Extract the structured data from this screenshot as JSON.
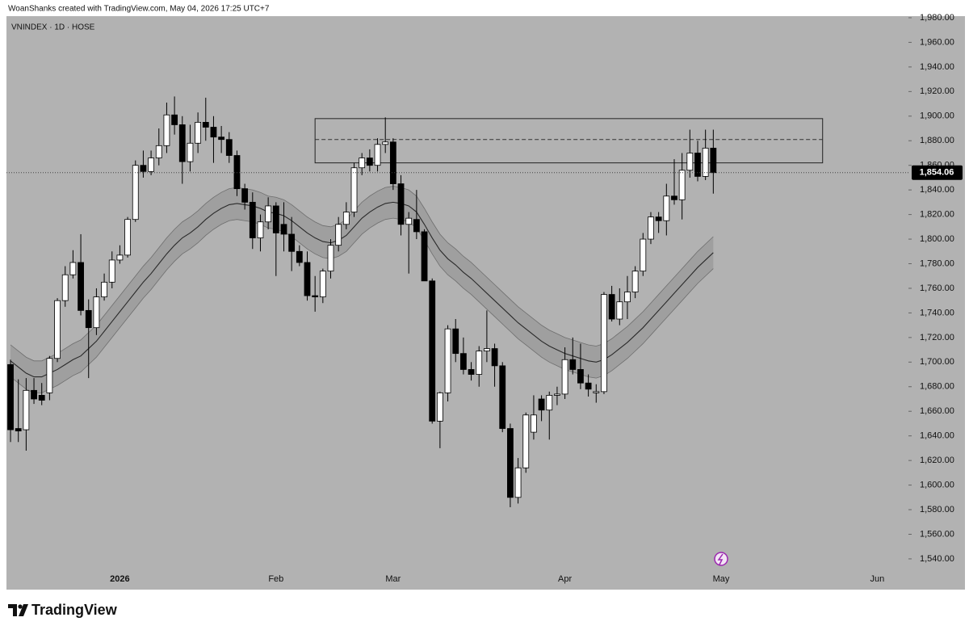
{
  "header": "WoanShanks created with TradingView.com, May 04, 2026 17:25 UTC+7",
  "footer": {
    "brand": "TradingView"
  },
  "chart_data": {
    "type": "candlestick",
    "symbol": "VNINDEX · 1D · HOSE",
    "categories": [
      null,
      null,
      null,
      null,
      null,
      null,
      null,
      null,
      null,
      null,
      null,
      null,
      null,
      null,
      "2026",
      null,
      null,
      null,
      null,
      null,
      null,
      null,
      null,
      null,
      null,
      null,
      null,
      null,
      null,
      null,
      null,
      null,
      null,
      null,
      "Feb",
      null,
      null,
      null,
      null,
      null,
      null,
      null,
      null,
      null,
      null,
      null,
      null,
      null,
      null,
      "Mar",
      null,
      null,
      null,
      null,
      null,
      null,
      null,
      null,
      null,
      null,
      null,
      null,
      null,
      null,
      null,
      null,
      null,
      null,
      null,
      null,
      null,
      "Apr",
      null,
      null,
      null,
      null,
      null,
      null,
      null,
      null,
      null,
      null,
      null,
      null,
      null,
      null,
      null,
      null,
      null,
      null,
      null,
      "May",
      null,
      null,
      null,
      null,
      null,
      null,
      null,
      null,
      null,
      null,
      null,
      null,
      null,
      null,
      null,
      null,
      null,
      null,
      null,
      "Jun"
    ],
    "open": [
      1698,
      1646,
      1645,
      1677,
      1673,
      1675,
      1703,
      1750,
      1771,
      1781,
      1742,
      1728,
      1753,
      1765,
      1783,
      1787,
      1816,
      1860,
      1855,
      1866,
      1876,
      1901,
      1893,
      1863,
      1878,
      1895,
      1891,
      1883,
      1881,
      1868,
      1841,
      1830,
      1801,
      1814,
      1827,
      1812,
      1804,
      1790,
      1781,
      1754,
      1753,
      1774,
      1795,
      1812,
      1822,
      1858,
      1866,
      1860,
      1877,
      1879,
      1845,
      1812,
      1816,
      1806,
      1766,
      1652,
      1675,
      1727,
      1707,
      1694,
      1690,
      1709,
      1711,
      1697,
      1646,
      1590,
      1614,
      1643,
      1670,
      1661,
      1673,
      1674,
      1702,
      1694,
      1683,
      1675,
      1676,
      1755,
      1735,
      1749,
      1757,
      1774,
      1800,
      1818,
      1815,
      1835,
      1832,
      1856,
      1870,
      1851,
      1874,
      null,
      null,
      null,
      null,
      null,
      null,
      null,
      null,
      null,
      null,
      null,
      null,
      null,
      null,
      null,
      null,
      null,
      null,
      null,
      null,
      null
    ],
    "high": [
      1702,
      1686,
      1687,
      1687,
      1683,
      1705,
      1752,
      1778,
      1791,
      1804,
      1751,
      1760,
      1772,
      1790,
      1795,
      1818,
      1864,
      1872,
      1872,
      1890,
      1911,
      1916,
      1900,
      1893,
      1903,
      1915,
      1900,
      1892,
      1887,
      1872,
      1845,
      1838,
      1820,
      1834,
      1830,
      1830,
      1818,
      1795,
      1790,
      1770,
      1776,
      1800,
      1818,
      1830,
      1862,
      1870,
      1873,
      1882,
      1899,
      1882,
      1852,
      1822,
      1840,
      1808,
      1768,
      1676,
      1730,
      1735,
      1720,
      1700,
      1713,
      1742,
      1715,
      1700,
      1650,
      1622,
      1659,
      1673,
      1673,
      1676,
      1680,
      1712,
      1720,
      1715,
      1690,
      1682,
      1757,
      1762,
      1760,
      1770,
      1778,
      1805,
      1822,
      1822,
      1845,
      1865,
      1870,
      1889,
      1880,
      1889,
      1889,
      null,
      null,
      null,
      null,
      null,
      null,
      null,
      null,
      null,
      null,
      null,
      null,
      null,
      null,
      null,
      null,
      null,
      null,
      null,
      null,
      null
    ],
    "low": [
      1635,
      1635,
      1628,
      1666,
      1665,
      1669,
      1700,
      1745,
      1768,
      1738,
      1687,
      1722,
      1750,
      1760,
      1780,
      1785,
      1814,
      1850,
      1852,
      1860,
      1870,
      1885,
      1845,
      1855,
      1870,
      1880,
      1862,
      1870,
      1862,
      1835,
      1824,
      1792,
      1790,
      1808,
      1770,
      1790,
      1774,
      1778,
      1750,
      1741,
      1748,
      1768,
      1790,
      1808,
      1818,
      1852,
      1855,
      1855,
      1870,
      1840,
      1803,
      1772,
      1800,
      1766,
      1650,
      1630,
      1668,
      1700,
      1690,
      1685,
      1680,
      1700,
      1680,
      1643,
      1582,
      1585,
      1610,
      1637,
      1652,
      1637,
      1665,
      1670,
      1690,
      1678,
      1672,
      1667,
      1674,
      1733,
      1730,
      1735,
      1752,
      1770,
      1796,
      1805,
      1803,
      1828,
      1816,
      1850,
      1847,
      1848,
      1837,
      null,
      null,
      null,
      null,
      null,
      null,
      null,
      null,
      null,
      null,
      null,
      null,
      null,
      null,
      null,
      null,
      null,
      null,
      null,
      null,
      null
    ],
    "close": [
      1645,
      1644,
      1677,
      1670,
      1669,
      1703,
      1750,
      1771,
      1781,
      1742,
      1728,
      1753,
      1765,
      1783,
      1787,
      1816,
      1860,
      1855,
      1866,
      1876,
      1901,
      1893,
      1863,
      1878,
      1895,
      1891,
      1883,
      1881,
      1868,
      1841,
      1830,
      1801,
      1814,
      1827,
      1805,
      1804,
      1790,
      1781,
      1754,
      1753,
      1774,
      1795,
      1812,
      1822,
      1858,
      1866,
      1860,
      1877,
      1879,
      1845,
      1812,
      1817,
      1806,
      1766,
      1652,
      1675,
      1727,
      1707,
      1694,
      1690,
      1709,
      1711,
      1697,
      1646,
      1590,
      1614,
      1657,
      1657,
      1661,
      1673,
      1674,
      1702,
      1694,
      1683,
      1678,
      1676,
      1755,
      1735,
      1749,
      1757,
      1774,
      1800,
      1818,
      1815,
      1835,
      1832,
      1856,
      1870,
      1851,
      1874,
      1854.06,
      null,
      null,
      null,
      null,
      null,
      null,
      null,
      null,
      null,
      null,
      null,
      null,
      null,
      null,
      null,
      null,
      null,
      null,
      null,
      null,
      null
    ],
    "band_center": [
      1701,
      1696,
      1691,
      1688,
      1688,
      1691,
      1694,
      1698,
      1702,
      1705,
      1711,
      1717,
      1725,
      1733,
      1741,
      1749,
      1757,
      1765,
      1772,
      1780,
      1788,
      1795,
      1801,
      1805,
      1810,
      1816,
      1821,
      1825,
      1828,
      1829,
      1828,
      1827,
      1825,
      1822,
      1821,
      1819,
      1815,
      1810,
      1805,
      1801,
      1798,
      1797,
      1799,
      1803,
      1810,
      1817,
      1822,
      1826,
      1829,
      1830,
      1829,
      1827,
      1822,
      1812,
      1801,
      1791,
      1784,
      1779,
      1773,
      1768,
      1762,
      1756,
      1750,
      1744,
      1738,
      1732,
      1727,
      1722,
      1717,
      1713,
      1710,
      1707,
      1705,
      1703,
      1701,
      1700,
      1702,
      1706,
      1711,
      1716,
      1722,
      1728,
      1735,
      1742,
      1749,
      1756,
      1763,
      1770,
      1777,
      1783,
      1789,
      null,
      null,
      null,
      null,
      null,
      null,
      null,
      null,
      null,
      null,
      null,
      null,
      null,
      null,
      null,
      null,
      null,
      null,
      null,
      null,
      null
    ],
    "band_upper": [
      1714,
      1709,
      1704,
      1701,
      1701,
      1704,
      1707,
      1711,
      1715,
      1718,
      1724,
      1730,
      1738,
      1746,
      1754,
      1762,
      1770,
      1778,
      1785,
      1793,
      1801,
      1808,
      1814,
      1818,
      1823,
      1829,
      1834,
      1838,
      1841,
      1842,
      1841,
      1840,
      1838,
      1835,
      1834,
      1832,
      1828,
      1823,
      1818,
      1814,
      1811,
      1810,
      1812,
      1816,
      1823,
      1830,
      1835,
      1839,
      1842,
      1843,
      1842,
      1840,
      1835,
      1825,
      1814,
      1804,
      1797,
      1792,
      1786,
      1781,
      1775,
      1769,
      1763,
      1757,
      1751,
      1745,
      1740,
      1735,
      1730,
      1726,
      1723,
      1720,
      1718,
      1716,
      1714,
      1713,
      1715,
      1719,
      1724,
      1729,
      1735,
      1741,
      1748,
      1755,
      1762,
      1769,
      1776,
      1783,
      1790,
      1796,
      1802,
      null,
      null,
      null,
      null,
      null,
      null,
      null,
      null,
      null,
      null,
      null,
      null,
      null,
      null,
      null,
      null,
      null,
      null,
      null,
      null,
      null
    ],
    "band_lower": [
      1688,
      1683,
      1678,
      1675,
      1675,
      1678,
      1681,
      1685,
      1689,
      1692,
      1698,
      1704,
      1712,
      1720,
      1728,
      1736,
      1744,
      1752,
      1759,
      1767,
      1775,
      1782,
      1788,
      1792,
      1797,
      1803,
      1808,
      1812,
      1815,
      1816,
      1815,
      1814,
      1812,
      1809,
      1808,
      1806,
      1802,
      1797,
      1792,
      1788,
      1785,
      1784,
      1786,
      1790,
      1797,
      1804,
      1809,
      1813,
      1816,
      1817,
      1816,
      1814,
      1809,
      1799,
      1788,
      1778,
      1771,
      1766,
      1760,
      1755,
      1749,
      1743,
      1737,
      1731,
      1725,
      1719,
      1714,
      1709,
      1704,
      1700,
      1697,
      1694,
      1692,
      1690,
      1688,
      1687,
      1689,
      1693,
      1698,
      1703,
      1709,
      1715,
      1722,
      1729,
      1736,
      1743,
      1750,
      1757,
      1764,
      1770,
      1776,
      null,
      null,
      null,
      null,
      null,
      null,
      null,
      null,
      null,
      null,
      null,
      null,
      null,
      null,
      null,
      null,
      null,
      null,
      null,
      null,
      null
    ],
    "zone": {
      "x": [
        39,
        104
      ],
      "y": [
        1862,
        1898
      ],
      "mid": 1881
    },
    "last": {
      "value": 1854.06,
      "label": "1,854.06"
    },
    "ylim": [
      1515,
      1981.3
    ],
    "yticks": [
      {
        "value": 1540,
        "label": "1,540.00"
      },
      {
        "value": 1560,
        "label": "1,560.00"
      },
      {
        "value": 1580,
        "label": "1,580.00"
      },
      {
        "value": 1600,
        "label": "1,600.00"
      },
      {
        "value": 1620,
        "label": "1,620.00"
      },
      {
        "value": 1640,
        "label": "1,640.00"
      },
      {
        "value": 1660,
        "label": "1,660.00"
      },
      {
        "value": 1680,
        "label": "1,680.00"
      },
      {
        "value": 1700,
        "label": "1,700.00"
      },
      {
        "value": 1720,
        "label": "1,720.00"
      },
      {
        "value": 1740,
        "label": "1,740.00"
      },
      {
        "value": 1760,
        "label": "1,760.00"
      },
      {
        "value": 1780,
        "label": "1,780.00"
      },
      {
        "value": 1800,
        "label": "1,800.00"
      },
      {
        "value": 1820,
        "label": "1,820.00"
      },
      {
        "value": 1840,
        "label": "1,840.00"
      },
      {
        "value": 1860,
        "label": "1,860.00"
      },
      {
        "value": 1880,
        "label": "1,880.00"
      },
      {
        "value": 1900,
        "label": "1,900.00"
      },
      {
        "value": 1920,
        "label": "1,920.00"
      },
      {
        "value": 1940,
        "label": "1,940.00"
      },
      {
        "value": 1960,
        "label": "1,960.00"
      },
      {
        "value": 1980,
        "label": "1,980.00"
      }
    ],
    "up_color": "#ffffff",
    "down_color": "#000000",
    "band_color": "#9b9b9b",
    "grid": false
  }
}
